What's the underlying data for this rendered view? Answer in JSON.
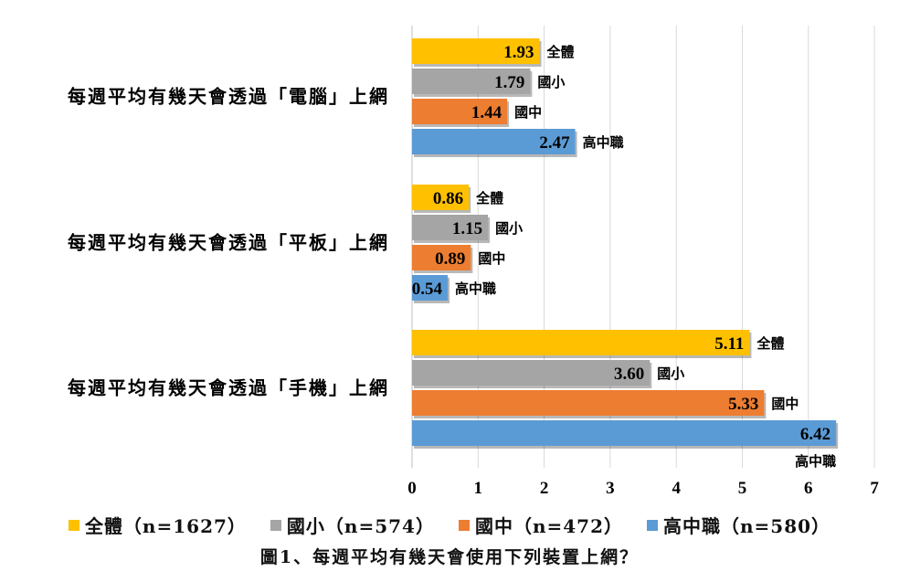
{
  "chart_data": {
    "type": "bar",
    "orientation": "horizontal",
    "categories": [
      "每週平均有幾天會透過「電腦」上網",
      "每週平均有幾天會透過「平板」上網",
      "每週平均有幾天會透過「手機」上網"
    ],
    "series": [
      {
        "name": "全體",
        "legend": "全體（n=1627）",
        "color": "#FFC000",
        "values": [
          1.93,
          0.86,
          5.11
        ],
        "labels": [
          "1.93",
          "0.86",
          "5.11"
        ]
      },
      {
        "name": "國小",
        "legend": "國小（n=574）",
        "color": "#A5A5A5",
        "values": [
          1.79,
          1.15,
          3.6
        ],
        "labels": [
          "1.79",
          "1.15",
          "3.60"
        ]
      },
      {
        "name": "國中",
        "legend": "國中（n=472）",
        "color": "#ED7D31",
        "values": [
          1.44,
          0.89,
          5.33
        ],
        "labels": [
          "1.44",
          "0.89",
          "5.33"
        ]
      },
      {
        "name": "高中職",
        "legend": "高中職（n=580）",
        "color": "#5B9BD5",
        "values": [
          2.47,
          0.54,
          6.42
        ],
        "labels": [
          "2.47",
          "0.54",
          "6.42"
        ]
      }
    ],
    "xlim": [
      0,
      7
    ],
    "ticks": [
      "0",
      "1",
      "2",
      "3",
      "4",
      "5",
      "6",
      "7"
    ],
    "grid": true,
    "legend_position": "bottom",
    "caption": "圖1、每週平均有幾天會使用下列裝置上網？"
  }
}
